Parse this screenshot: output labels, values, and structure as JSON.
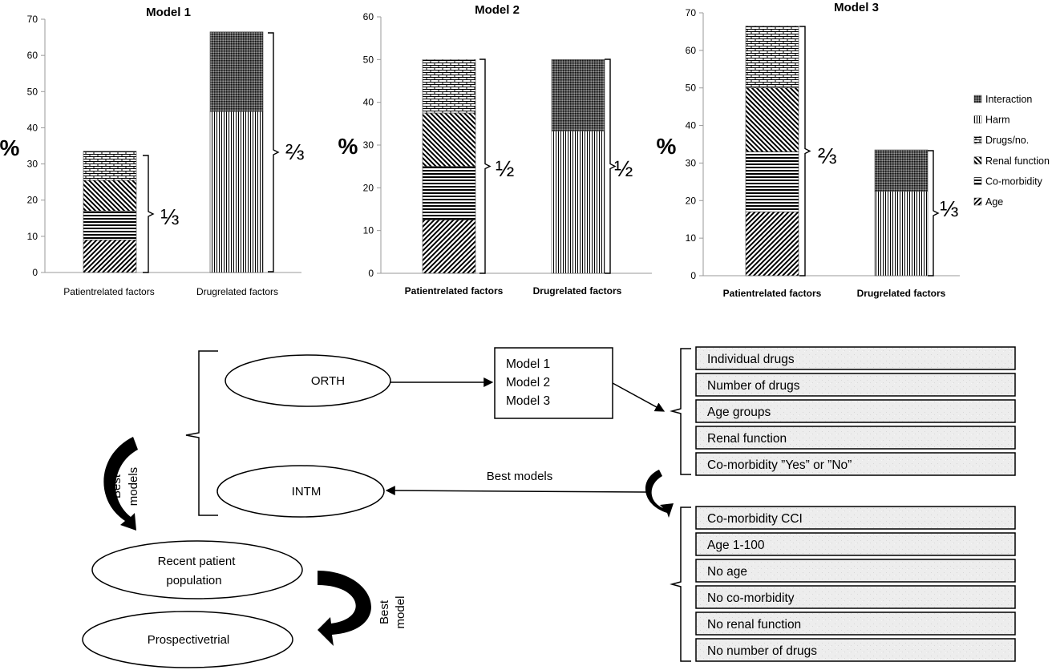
{
  "chart_data": [
    {
      "type": "bar",
      "stacked": true,
      "title": "Model 1",
      "ylabel": "%",
      "ylim": [
        0,
        70
      ],
      "yticks": [
        "0",
        "10",
        "20",
        "30",
        "40",
        "50",
        "60",
        "70"
      ],
      "categories": [
        "Patientrelated factors",
        "Drugrelated factors"
      ],
      "series": [
        {
          "name": "Age",
          "values": [
            9,
            0
          ]
        },
        {
          "name": "Co-morbidity",
          "values": [
            8,
            0
          ]
        },
        {
          "name": "Renal function",
          "values": [
            8.5,
            0
          ]
        },
        {
          "name": "Drugs/no.",
          "values": [
            8,
            0
          ]
        },
        {
          "name": "Harm",
          "values": [
            0,
            44.5
          ]
        },
        {
          "name": "Interaction",
          "values": [
            0,
            22
          ]
        }
      ],
      "annotations": [
        "⅓",
        "⅔"
      ]
    },
    {
      "type": "bar",
      "stacked": true,
      "title": "Model 2",
      "ylabel": "%",
      "ylim": [
        0,
        60
      ],
      "yticks": [
        "0",
        "10",
        "20",
        "30",
        "40",
        "50",
        "60"
      ],
      "categories": [
        "Patientrelated factors",
        "Drugrelated factors"
      ],
      "series": [
        {
          "name": "Age",
          "values": [
            12.5,
            0
          ]
        },
        {
          "name": "Co-morbidity",
          "values": [
            12.5,
            0
          ]
        },
        {
          "name": "Renal function",
          "values": [
            12.5,
            0
          ]
        },
        {
          "name": "Drugs/no.",
          "values": [
            12.5,
            0
          ]
        },
        {
          "name": "Harm",
          "values": [
            0,
            33.3
          ]
        },
        {
          "name": "Interaction",
          "values": [
            0,
            16.7
          ]
        }
      ],
      "annotations": [
        "½",
        "½"
      ]
    },
    {
      "type": "bar",
      "stacked": true,
      "title": "Model 3",
      "ylabel": "%",
      "ylim": [
        0,
        70
      ],
      "yticks": [
        "0",
        "10",
        "20",
        "30",
        "40",
        "50",
        "60",
        "70"
      ],
      "categories": [
        "Patientrelated factors",
        "Drugrelated factors"
      ],
      "series": [
        {
          "name": "Age",
          "values": [
            17,
            0
          ]
        },
        {
          "name": "Co-morbidity",
          "values": [
            16,
            0
          ]
        },
        {
          "name": "Renal function",
          "values": [
            17,
            0
          ]
        },
        {
          "name": "Drugs/no.",
          "values": [
            16.5,
            0
          ]
        },
        {
          "name": "Harm",
          "values": [
            0,
            22.5
          ]
        },
        {
          "name": "Interaction",
          "values": [
            0,
            11
          ]
        }
      ],
      "annotations": [
        "⅔",
        "⅓"
      ],
      "legend": {
        "placement": "right",
        "entries": [
          "Interaction",
          "Harm",
          "Drugs/no.",
          "Renal function",
          "Co-morbidity",
          "Age"
        ]
      }
    }
  ],
  "flow": {
    "orth": "ORTH",
    "intm": "INTM",
    "recent_line1": "Recent patient",
    "recent_line2": "population",
    "prospective": "Prospectivetrial",
    "models_box": [
      "Model 1",
      "Model 2",
      "Model 3"
    ],
    "best_models_horizontal": "Best models",
    "best_models_curved_1": "Best",
    "best_models_curved_2": "models",
    "best_model_curved_1": "Best",
    "best_model_curved_2": "model",
    "variables_top": [
      "Individual drugs",
      "Number of drugs",
      "Age groups",
      "Renal function",
      "Co-morbidity ”Yes” or ”No”"
    ],
    "variables_bottom": [
      "Co-morbidity CCI",
      "Age 1-100",
      "No age",
      "No co-morbidity",
      "No renal function",
      "No number of drugs"
    ]
  }
}
